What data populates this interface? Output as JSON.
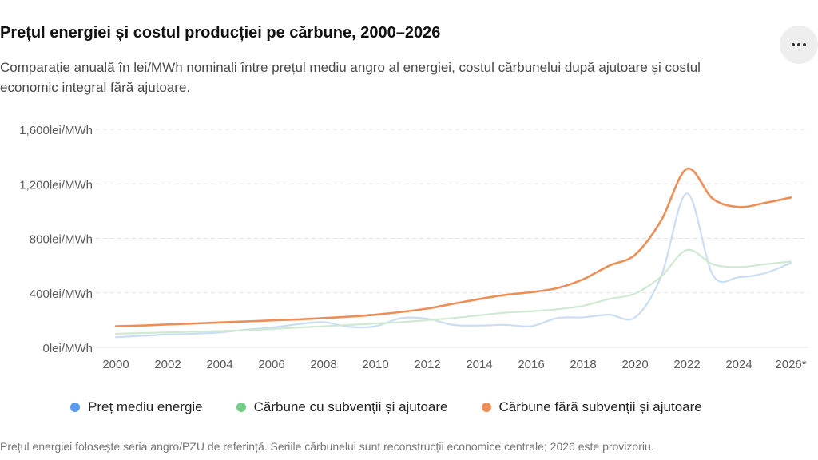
{
  "header": {
    "title": "Prețul energiei și costul producției pe cărbune, 2000–2026",
    "subtitle": "Comparație anuală în lei/MWh nominali între prețul mediu angro al energiei, costul cărbunelui după ajutoare și costul economic integral fără ajutoare.",
    "more_icon": "more-horizontal-icon"
  },
  "footnote": "Prețul energiei folosește seria angro/PZU de referință. Seriile cărbunelui sunt reconstrucții economice centrale; 2026 este provizoriu.",
  "chart_data": {
    "type": "line",
    "ylim": [
      0,
      1600
    ],
    "yticks": [
      {
        "value": 0,
        "label": "0lei/MWh"
      },
      {
        "value": 400,
        "label": "400lei/MWh"
      },
      {
        "value": 800,
        "label": "800lei/MWh"
      },
      {
        "value": 1200,
        "label": "1,200lei/MWh"
      },
      {
        "value": 1600,
        "label": "1,600lei/MWh"
      }
    ],
    "xticks": [
      {
        "value": 2000,
        "label": "2000"
      },
      {
        "value": 2002,
        "label": "2002"
      },
      {
        "value": 2004,
        "label": "2004"
      },
      {
        "value": 2006,
        "label": "2006"
      },
      {
        "value": 2008,
        "label": "2008"
      },
      {
        "value": 2010,
        "label": "2010"
      },
      {
        "value": 2012,
        "label": "2012"
      },
      {
        "value": 2014,
        "label": "2014"
      },
      {
        "value": 2016,
        "label": "2016"
      },
      {
        "value": 2018,
        "label": "2018"
      },
      {
        "value": 2020,
        "label": "2020"
      },
      {
        "value": 2022,
        "label": "2022"
      },
      {
        "value": 2024,
        "label": "2024"
      },
      {
        "value": 2026,
        "label": "2026*"
      }
    ],
    "x": [
      2000,
      2001,
      2002,
      2003,
      2004,
      2005,
      2006,
      2007,
      2008,
      2009,
      2010,
      2011,
      2012,
      2013,
      2014,
      2015,
      2016,
      2017,
      2018,
      2019,
      2020,
      2021,
      2022,
      2023,
      2024,
      2025,
      2026
    ],
    "grid": true,
    "legend_position": "bottom",
    "series": [
      {
        "name": "Preț mediu energie",
        "color": "#5b9bef",
        "line_color": "#c9ddf5",
        "values": [
          75,
          85,
          95,
          100,
          110,
          130,
          145,
          170,
          185,
          150,
          155,
          215,
          210,
          165,
          160,
          165,
          155,
          215,
          220,
          240,
          220,
          520,
          1130,
          530,
          515,
          545,
          620
        ]
      },
      {
        "name": "Cărbune cu subvenții și ajutoare",
        "color": "#72cc86",
        "line_color": "#cfe9d2",
        "values": [
          100,
          105,
          110,
          115,
          120,
          125,
          135,
          145,
          155,
          165,
          175,
          185,
          200,
          215,
          235,
          255,
          265,
          280,
          305,
          355,
          395,
          520,
          715,
          610,
          590,
          610,
          630
        ]
      },
      {
        "name": "Cărbune fără subvenții și ajutoare",
        "color": "#ee8d55",
        "line_color": "#ee8d55",
        "values": [
          155,
          160,
          168,
          175,
          183,
          190,
          198,
          205,
          215,
          225,
          240,
          260,
          285,
          320,
          355,
          385,
          405,
          435,
          500,
          600,
          680,
          930,
          1310,
          1090,
          1030,
          1060,
          1100
        ]
      }
    ]
  }
}
